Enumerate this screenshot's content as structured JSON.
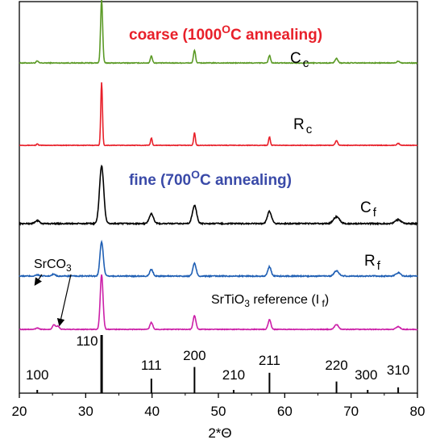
{
  "chart_data": {
    "type": "line",
    "title": "",
    "xlabel": "2*Θ",
    "ylabel": "",
    "xlim": [
      20,
      80
    ],
    "xticks": [
      20,
      30,
      40,
      50,
      60,
      70,
      80
    ],
    "grid": false,
    "series": [
      {
        "name": "Cc",
        "label_main": "C",
        "label_sub": "c",
        "color": "#5b9a26",
        "offset": 0,
        "noise": 0.6,
        "width": 0.22,
        "peaks": [
          [
            22.7,
            3
          ],
          [
            32.4,
            100
          ],
          [
            39.9,
            11
          ],
          [
            46.4,
            20
          ],
          [
            57.7,
            12
          ],
          [
            67.8,
            7
          ],
          [
            77.1,
            3
          ]
        ]
      },
      {
        "name": "Rc",
        "label_main": "R",
        "label_sub": "c",
        "color": "#e8202a",
        "offset": 0,
        "noise": 0.4,
        "width": 0.18,
        "peaks": [
          [
            22.7,
            2
          ],
          [
            32.4,
            95
          ],
          [
            39.9,
            11
          ],
          [
            46.4,
            19
          ],
          [
            57.7,
            13
          ],
          [
            67.8,
            7
          ],
          [
            77.1,
            3
          ]
        ]
      },
      {
        "name": "Cf",
        "label_main": "C",
        "label_sub": "f",
        "color": "#000000",
        "offset": 0,
        "noise": 0.8,
        "width": 0.45,
        "peaks": [
          [
            22.7,
            4
          ],
          [
            32.4,
            76
          ],
          [
            39.9,
            13
          ],
          [
            46.4,
            24
          ],
          [
            57.7,
            16
          ],
          [
            67.8,
            9
          ],
          [
            77.1,
            5
          ]
        ]
      },
      {
        "name": "Rf",
        "label_main": "R",
        "label_sub": "f",
        "color": "#1f5fb4",
        "offset": 0,
        "noise": 0.8,
        "width": 0.35,
        "peaks": [
          [
            22.7,
            2
          ],
          [
            25.2,
            3
          ],
          [
            32.4,
            52
          ],
          [
            39.9,
            10
          ],
          [
            46.4,
            19
          ],
          [
            57.7,
            14
          ],
          [
            67.8,
            8
          ],
          [
            77.1,
            5
          ]
        ]
      },
      {
        "name": "If",
        "label_main": "",
        "label_sub": "",
        "color": "#cc1fa8",
        "offset": 0,
        "noise": 0.5,
        "width": 0.3,
        "peaks": [
          [
            22.7,
            2
          ],
          [
            25.2,
            7
          ],
          [
            25.8,
            5
          ],
          [
            32.4,
            80
          ],
          [
            39.9,
            10
          ],
          [
            46.4,
            20
          ],
          [
            57.7,
            14
          ],
          [
            67.8,
            7
          ],
          [
            77.1,
            4
          ]
        ]
      }
    ],
    "reference_peaks": [
      {
        "hkl": "100",
        "x": 22.7,
        "intensity": 3
      },
      {
        "hkl": "110",
        "x": 32.4,
        "intensity": 100
      },
      {
        "hkl": "111",
        "x": 39.9,
        "intensity": 25
      },
      {
        "hkl": "200",
        "x": 46.4,
        "intensity": 45
      },
      {
        "hkl": "210",
        "x": 52.3,
        "intensity": 3
      },
      {
        "hkl": "211",
        "x": 57.7,
        "intensity": 35
      },
      {
        "hkl": "220",
        "x": 67.8,
        "intensity": 20
      },
      {
        "hkl": "300",
        "x": 72.5,
        "intensity": 2
      },
      {
        "hkl": "310",
        "x": 77.1,
        "intensity": 10
      }
    ],
    "annotations": {
      "coarse": {
        "main": "coarse (1000",
        "sup": "O",
        "tail": "C annealing)",
        "color": "#e8202a"
      },
      "fine": {
        "main": "fine (700",
        "sup": "O",
        "tail": "C annealing)",
        "color": "#3a4aa8"
      },
      "srco3": {
        "main": "SrCO",
        "sub": "3"
      },
      "reference": {
        "main": "SrTiO",
        "sub": "3",
        "tail": " reference (I",
        "tail_sub": " f",
        "close": ")"
      }
    }
  }
}
